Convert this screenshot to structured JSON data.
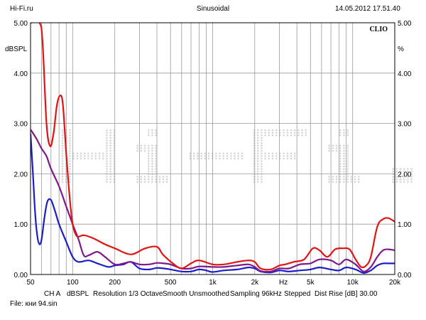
{
  "header": {
    "site": "Hi-Fi.ru",
    "mode": "Sinusoidal",
    "timestamp": "14.05.2012 17.51.40"
  },
  "footer": {
    "channel": "CH A",
    "unit": "dBSPL",
    "resolution": "Resolution 1/3 Octave",
    "smoothing": "Smooth Unsmoothed",
    "sampling": "Sampling 96kHz",
    "stepping": "Stepped",
    "dist_rise": "Dist Rise [dB] 30.00",
    "file": "File: кни 94.sin"
  },
  "chart_data": {
    "type": "line",
    "title": "Sinusoidal",
    "brand": "CLIO",
    "xscale": "log",
    "xlim": [
      50,
      20000
    ],
    "ylim": [
      0,
      5
    ],
    "xlabel": "Hz",
    "ylabel_left": "dBSPL",
    "ylabel_right": "%",
    "grid": true,
    "watermark": "Hi-Fi.ru",
    "x_ticks": [
      {
        "v": 50,
        "label": "50"
      },
      {
        "v": 100,
        "label": "100"
      },
      {
        "v": 200,
        "label": "200"
      },
      {
        "v": 500,
        "label": "500"
      },
      {
        "v": 1000,
        "label": "1k"
      },
      {
        "v": 2000,
        "label": "2k"
      },
      {
        "v": 5000,
        "label": "5k"
      },
      {
        "v": 10000,
        "label": "10k"
      },
      {
        "v": 20000,
        "label": "20k"
      }
    ],
    "y_ticks": [
      "0.00",
      "1.00",
      "2.00",
      "3.00",
      "4.00",
      "5.00"
    ],
    "colors": {
      "grid": "#9a9a9a",
      "frame": "#000000",
      "watermark": "#d6d6d6"
    },
    "series": [
      {
        "name": "red",
        "color": "#e01414",
        "x": [
          50,
          58,
          61,
          65,
          69,
          73,
          77,
          81,
          85,
          90,
          95,
          100,
          105,
          110,
          120,
          140,
          170,
          200,
          260,
          330,
          400,
          440,
          520,
          600,
          700,
          800,
          1000,
          1200,
          1500,
          1800,
          2000,
          2200,
          2600,
          3000,
          3300,
          3800,
          4500,
          5200,
          5800,
          6600,
          7500,
          8500,
          9500,
          10500,
          11500,
          12500,
          13500,
          15000,
          16500,
          18000,
          20000
        ],
        "y": [
          5.0,
          5.0,
          4.6,
          3.0,
          2.55,
          2.8,
          3.35,
          3.55,
          3.4,
          2.4,
          1.55,
          1.0,
          0.8,
          0.75,
          0.78,
          0.72,
          0.6,
          0.52,
          0.4,
          0.52,
          0.55,
          0.4,
          0.22,
          0.12,
          0.22,
          0.28,
          0.2,
          0.2,
          0.25,
          0.28,
          0.25,
          0.12,
          0.1,
          0.18,
          0.2,
          0.25,
          0.3,
          0.52,
          0.48,
          0.35,
          0.5,
          0.52,
          0.5,
          0.3,
          0.15,
          0.18,
          0.35,
          0.95,
          1.1,
          1.12,
          1.05
        ]
      },
      {
        "name": "purple",
        "color": "#7d1a8a",
        "x": [
          50,
          55,
          60,
          65,
          70,
          80,
          90,
          100,
          110,
          120,
          130,
          150,
          170,
          200,
          230,
          260,
          300,
          350,
          400,
          450,
          500,
          600,
          700,
          800,
          1000,
          1200,
          1500,
          1800,
          2000,
          2200,
          2600,
          3000,
          3500,
          4200,
          5000,
          5800,
          7000,
          8000,
          9000,
          10500,
          12000,
          13500,
          15000,
          16500,
          18000,
          20000
        ],
        "y": [
          2.88,
          2.7,
          2.5,
          2.35,
          2.1,
          1.75,
          1.35,
          1.0,
          0.7,
          0.38,
          0.38,
          0.45,
          0.35,
          0.2,
          0.22,
          0.25,
          0.2,
          0.2,
          0.23,
          0.22,
          0.2,
          0.12,
          0.12,
          0.16,
          0.15,
          0.15,
          0.18,
          0.2,
          0.15,
          0.07,
          0.06,
          0.12,
          0.12,
          0.2,
          0.22,
          0.3,
          0.28,
          0.2,
          0.3,
          0.2,
          0.06,
          0.15,
          0.35,
          0.48,
          0.5,
          0.48
        ]
      },
      {
        "name": "blue",
        "color": "#1d1dc8",
        "x": [
          50,
          52,
          54,
          56,
          58,
          60,
          63,
          66,
          70,
          75,
          80,
          90,
          100,
          110,
          130,
          150,
          180,
          200,
          230,
          260,
          300,
          350,
          400,
          450,
          500,
          600,
          700,
          800,
          900,
          1000,
          1200,
          1500,
          1800,
          2000,
          2200,
          2600,
          3000,
          3500,
          4200,
          5000,
          5800,
          7000,
          8000,
          9000,
          10500,
          12000,
          13500,
          15000,
          16500,
          18000,
          20000
        ],
        "y": [
          2.8,
          2.0,
          1.2,
          0.75,
          0.6,
          0.7,
          1.15,
          1.45,
          1.48,
          1.25,
          1.0,
          0.65,
          0.35,
          0.25,
          0.28,
          0.22,
          0.15,
          0.18,
          0.2,
          0.25,
          0.12,
          0.1,
          0.13,
          0.12,
          0.1,
          0.06,
          0.06,
          0.1,
          0.08,
          0.05,
          0.08,
          0.1,
          0.14,
          0.12,
          0.06,
          0.04,
          0.08,
          0.06,
          0.08,
          0.1,
          0.14,
          0.1,
          0.08,
          0.14,
          0.1,
          0.03,
          0.08,
          0.18,
          0.22,
          0.22,
          0.22
        ]
      }
    ]
  }
}
